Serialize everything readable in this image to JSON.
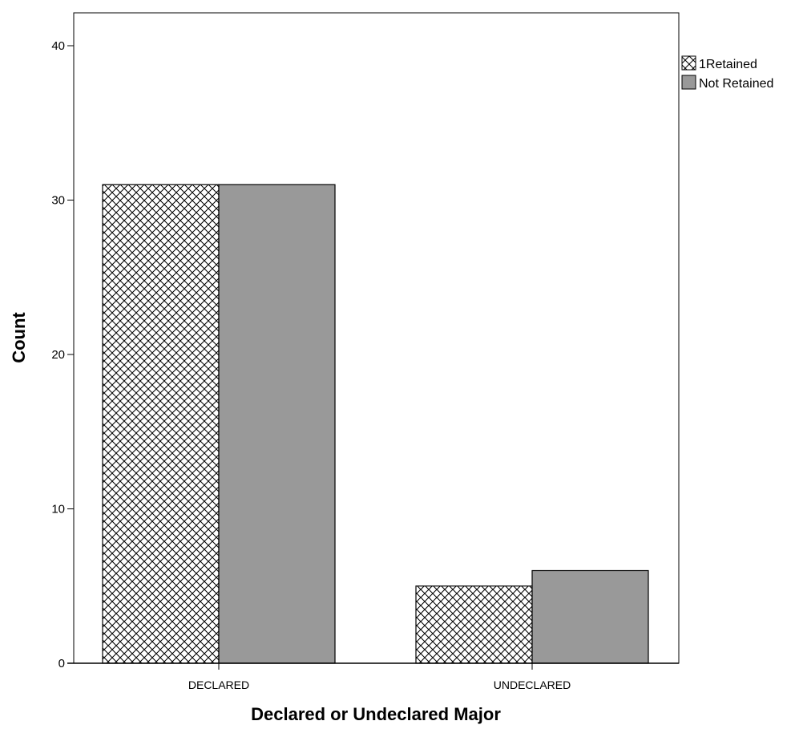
{
  "chart_data": {
    "type": "bar",
    "categories": [
      "DECLARED",
      "UNDECLARED"
    ],
    "series": [
      {
        "name": "1Retained",
        "values": [
          31,
          5
        ],
        "fill": "crosshatch",
        "color": "#000000"
      },
      {
        "name": "Not Retained",
        "values": [
          31,
          6
        ],
        "fill": "solid",
        "color": "#999999"
      }
    ],
    "xlabel": "Declared or Undeclared Major",
    "ylabel": "Count",
    "ylim": [
      0,
      42
    ],
    "yticks": [
      0,
      10,
      20,
      30,
      40
    ],
    "grid": false,
    "legend_position": "top-right"
  }
}
